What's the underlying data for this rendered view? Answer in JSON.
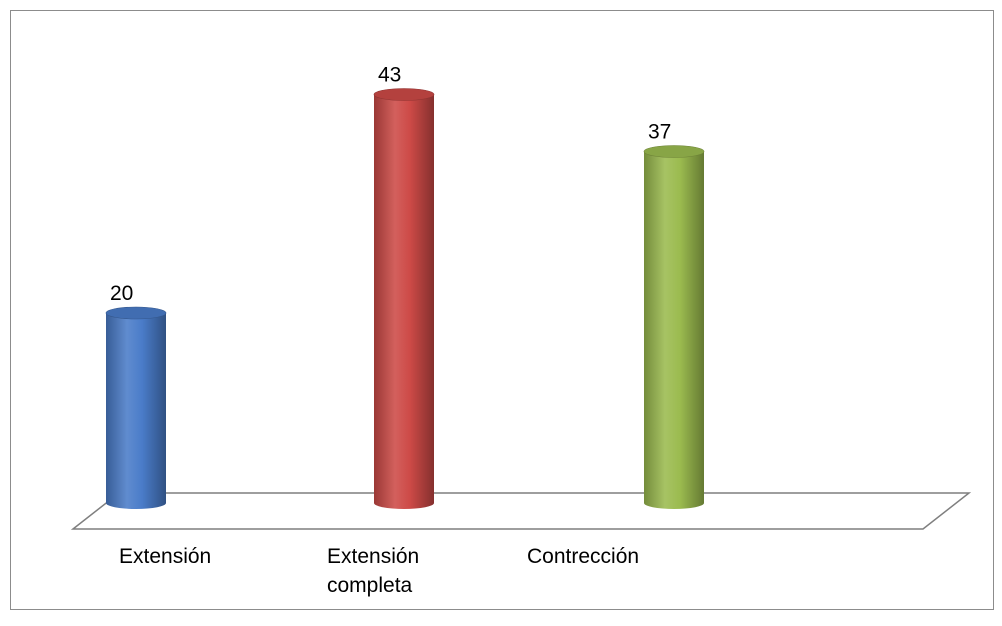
{
  "chart_data": {
    "type": "bar",
    "style": "3d-cylinder",
    "categories": [
      [
        "Extensión"
      ],
      [
        "Extensión",
        "completa"
      ],
      [
        "Contrección"
      ]
    ],
    "values": [
      20,
      43,
      37
    ],
    "colors": [
      "#4a7cc9",
      "#cd4a47",
      "#9bbb4f"
    ],
    "data_labels": [
      "20",
      "43",
      "37"
    ],
    "ylim": [
      0,
      45
    ],
    "grid": false,
    "legend": "none"
  }
}
